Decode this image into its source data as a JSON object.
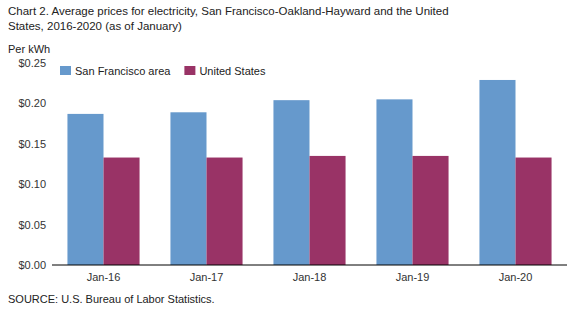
{
  "chart_data": {
    "type": "bar",
    "title": [
      "Chart 2. Average prices for electricity, San Francisco-Oakland-Hayward  and the United",
      "States, 2016-2020  (as of January)"
    ],
    "y_label": "Per kWh",
    "annotations": [
      "SOURCE: U.S. Bureau of Labor Statistics."
    ],
    "categories": [
      "Jan-16",
      "Jan-17",
      "Jan-18",
      "Jan-19",
      "Jan-20"
    ],
    "series": [
      {
        "name": "San Francisco area",
        "color": "#6699CC",
        "values": [
          0.187,
          0.189,
          0.204,
          0.205,
          0.229
        ]
      },
      {
        "name": "United States",
        "color": "#993366",
        "values": [
          0.133,
          0.133,
          0.135,
          0.135,
          0.133
        ]
      }
    ],
    "ylim": [
      0,
      0.25
    ],
    "yticks": [
      {
        "value": 0.0,
        "label": "$0.00"
      },
      {
        "value": 0.05,
        "label": "$0.05"
      },
      {
        "value": 0.1,
        "label": "$0.10"
      },
      {
        "value": 0.15,
        "label": "$0.15"
      },
      {
        "value": 0.2,
        "label": "$0.20"
      },
      {
        "value": 0.25,
        "label": "$0.25"
      }
    ],
    "grid": false,
    "legend": "upper left"
  }
}
